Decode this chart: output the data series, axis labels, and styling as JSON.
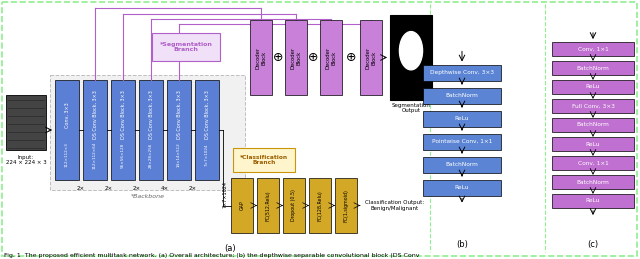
{
  "fig_width": 6.4,
  "fig_height": 2.59,
  "dpi": 100,
  "bg_color": "#ffffff",
  "border_color": "#90EE90",
  "caption": "Fig. 1  The proposed efficient multitask network. (a) Overall architecture; (b) the depthwise separable convolutional block (DS Conv",
  "enc_labels": [
    "Conv, 3×3",
    "DS Conv Block, 3×3",
    "DS Conv Block, 3×3",
    "DS Conv Block, 3×3",
    "DS Conv Block, 3×3",
    "DS Conv Block, 3×3"
  ],
  "enc_sizes": [
    "112×112×3",
    "112×112×64",
    "56×56×128",
    "28×28×256",
    "14×14×512",
    "7×7×1024"
  ],
  "enc_color": "#5B7FD4",
  "dec_color": "#C77FD4",
  "cls_color": "#D4A827",
  "blue_color": "#5B85D4",
  "purple_color": "#C070D0",
  "part_b_blocks": [
    "Depthwise Conv, 3×3",
    "BatchNorm",
    "ReLu",
    "Pointwise Conv, 1×1",
    "BatchNorm",
    "ReLu"
  ],
  "part_c_blocks": [
    "Conv, 1×1",
    "BatchNorm",
    "ReLu",
    "Full Conv, 3×3",
    "BatchNorm",
    "ReLu",
    "Conv, 1×1",
    "BatchNorm",
    "ReLu"
  ],
  "scale_labels": [
    "2×",
    "2×",
    "2×",
    "4×",
    "2×"
  ],
  "cls_blocks": [
    "GAP",
    "FC(512,Relu)",
    "Dropout (0.5)",
    "FC(128,Relu)",
    "FC(1,sigmoid)"
  ]
}
